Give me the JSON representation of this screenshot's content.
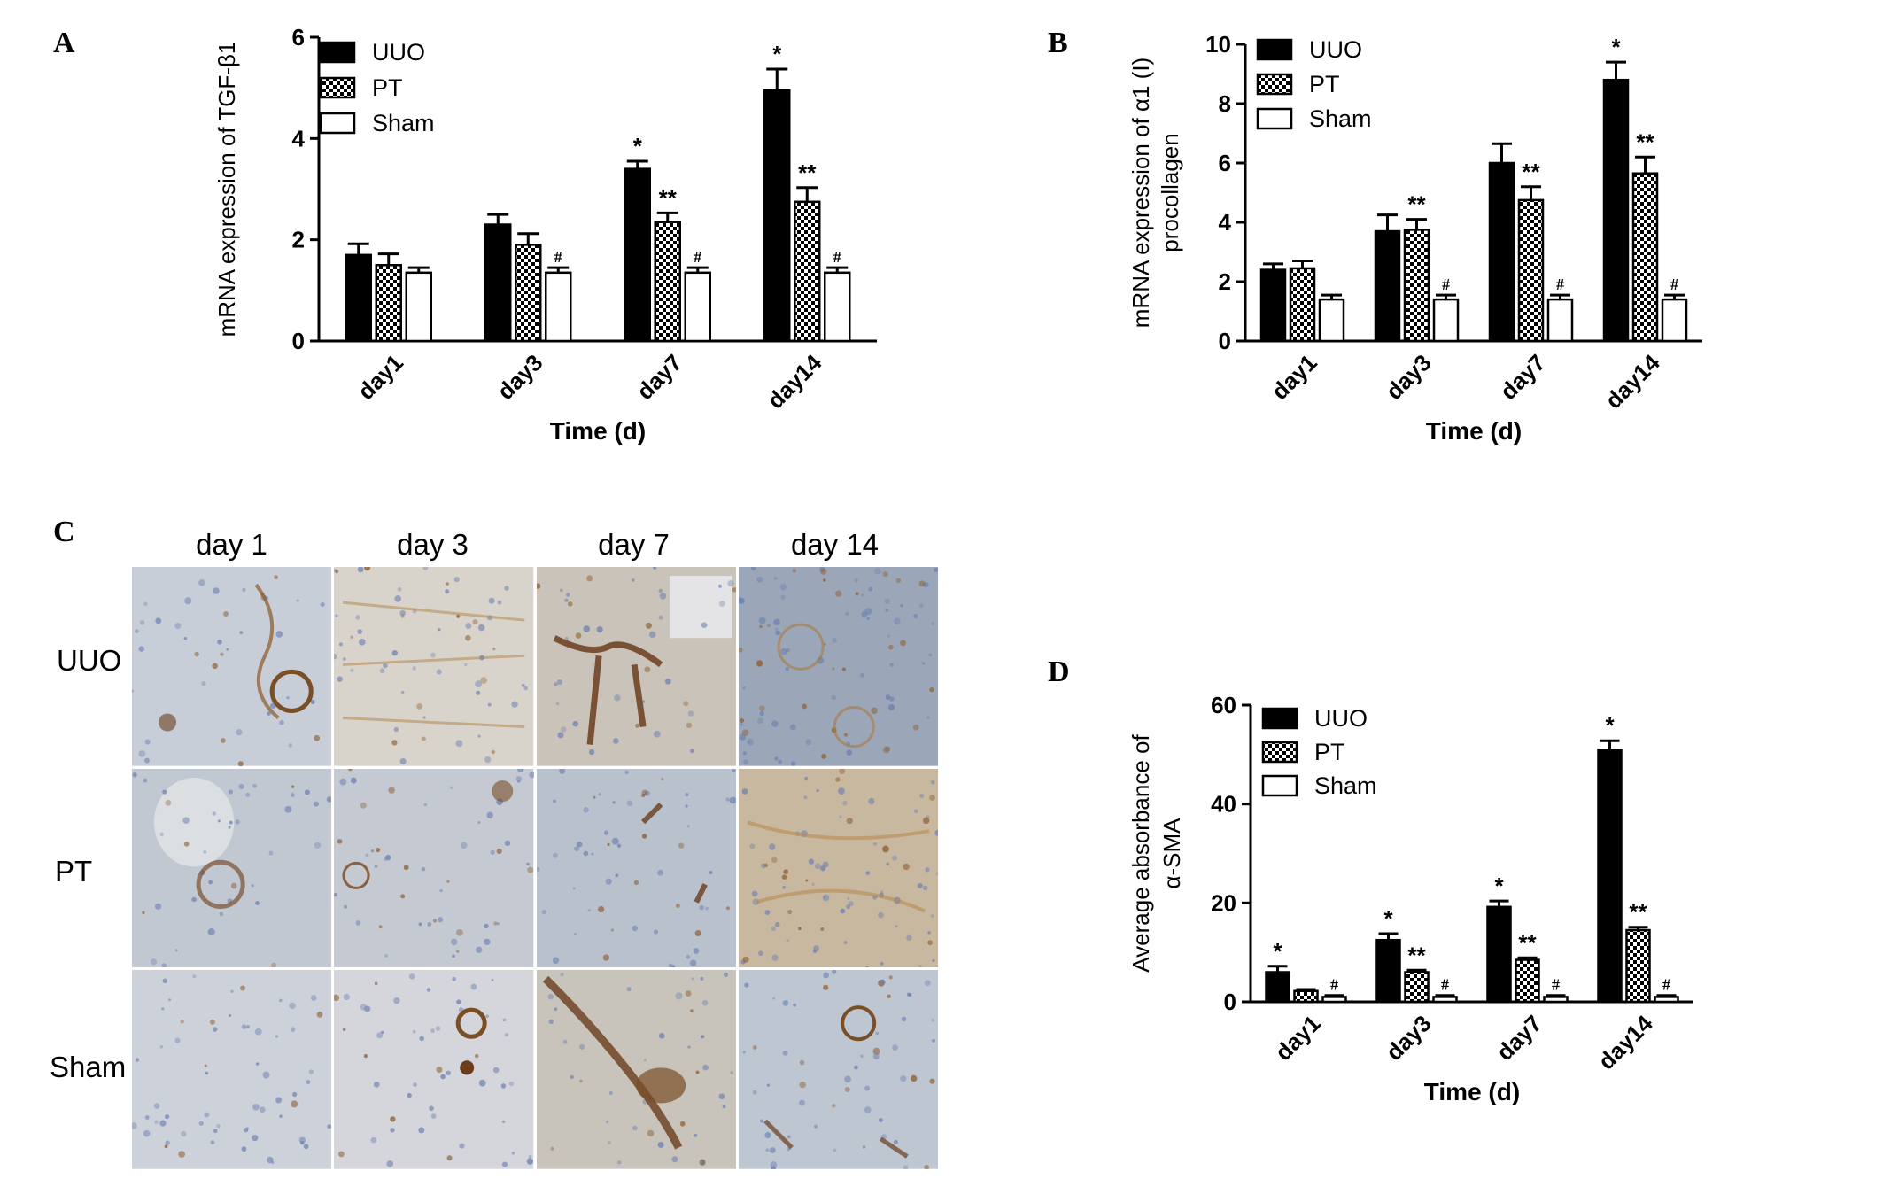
{
  "panels": {
    "A": "A",
    "B": "B",
    "C": "C",
    "D": "D"
  },
  "chart_data": [
    {
      "id": "A",
      "type": "bar",
      "ylabel": "mRNA expression of TGF-β1",
      "xlabel": "Time (d)",
      "categories": [
        "day1",
        "day3",
        "day7",
        "day14"
      ],
      "ylim": [
        0,
        6
      ],
      "yticks": [
        "0",
        "2",
        "4",
        "6"
      ],
      "legend": [
        "UUO",
        "PT",
        "Sham"
      ],
      "legend_position": "top-left",
      "series": [
        {
          "name": "UUO",
          "fill": "#000000",
          "values": [
            1.7,
            2.3,
            3.4,
            4.95
          ],
          "errors": [
            0.22,
            0.2,
            0.15,
            0.42
          ],
          "marks": [
            "",
            "",
            "*",
            "*"
          ]
        },
        {
          "name": "PT",
          "fill": "checker",
          "values": [
            1.5,
            1.9,
            2.35,
            2.75
          ],
          "errors": [
            0.22,
            0.22,
            0.18,
            0.28
          ],
          "marks": [
            "",
            "",
            "**",
            "**"
          ]
        },
        {
          "name": "Sham",
          "fill": "#ffffff",
          "values": [
            1.35,
            1.35,
            1.35,
            1.35
          ],
          "errors": [
            0.1,
            0.1,
            0.1,
            0.1
          ],
          "marks": [
            "",
            "#",
            "#",
            "#"
          ]
        }
      ]
    },
    {
      "id": "B",
      "type": "bar",
      "ylabel": "mRNA expression of α1 (I) procollagen",
      "ylabel_lines": [
        "mRNA expression of α1 (I)",
        "procollagen"
      ],
      "xlabel": "Time (d)",
      "categories": [
        "day1",
        "day3",
        "day7",
        "day14"
      ],
      "ylim": [
        0,
        10
      ],
      "yticks": [
        "0",
        "2",
        "4",
        "6",
        "8",
        "10"
      ],
      "legend": [
        "UUO",
        "PT",
        "Sham"
      ],
      "legend_position": "top-left",
      "series": [
        {
          "name": "UUO",
          "fill": "#000000",
          "values": [
            2.4,
            3.7,
            6.0,
            8.8
          ],
          "errors": [
            0.2,
            0.55,
            0.65,
            0.6
          ],
          "marks": [
            "",
            "",
            "",
            "*"
          ]
        },
        {
          "name": "PT",
          "fill": "checker",
          "values": [
            2.45,
            3.75,
            4.75,
            5.65
          ],
          "errors": [
            0.25,
            0.35,
            0.45,
            0.55
          ],
          "marks": [
            "",
            "**",
            "**",
            "**"
          ]
        },
        {
          "name": "Sham",
          "fill": "#ffffff",
          "values": [
            1.4,
            1.4,
            1.4,
            1.4
          ],
          "errors": [
            0.15,
            0.15,
            0.15,
            0.15
          ],
          "marks": [
            "",
            "#",
            "#",
            "#"
          ]
        }
      ]
    },
    {
      "id": "D",
      "type": "bar",
      "ylabel": "Average absorbance of α-SMA",
      "ylabel_lines": [
        "Average absorbance of",
        "α-SMA"
      ],
      "xlabel": "Time (d)",
      "categories": [
        "day1",
        "day3",
        "day7",
        "day14"
      ],
      "ylim": [
        0,
        60
      ],
      "yticks": [
        "0",
        "20",
        "40",
        "60"
      ],
      "legend": [
        "UUO",
        "PT",
        "Sham"
      ],
      "legend_position": "top-left",
      "series": [
        {
          "name": "UUO",
          "fill": "#000000",
          "values": [
            6.0,
            12.5,
            19.2,
            51.0
          ],
          "errors": [
            1.2,
            1.3,
            1.2,
            1.8
          ],
          "marks": [
            "*",
            "*",
            "*",
            "*"
          ]
        },
        {
          "name": "PT",
          "fill": "checker",
          "values": [
            2.2,
            6.0,
            8.5,
            14.5
          ],
          "errors": [
            0.3,
            0.4,
            0.4,
            0.6
          ],
          "marks": [
            "",
            "**",
            "**",
            "**"
          ]
        },
        {
          "name": "Sham",
          "fill": "#ffffff",
          "values": [
            1.0,
            1.0,
            1.0,
            1.0
          ],
          "errors": [
            0.3,
            0.3,
            0.3,
            0.3
          ],
          "marks": [
            "#",
            "#",
            "#",
            "#"
          ]
        }
      ]
    }
  ],
  "micrographs": {
    "columns": [
      "day 1",
      "day 3",
      "day 7",
      "day 14"
    ],
    "rows": [
      "UUO",
      "PT",
      "Sham"
    ],
    "staining_colors": {
      "background": "#c9cfd8",
      "nuclei": "#6b7fb0",
      "stain": "#8b5a2b"
    }
  }
}
